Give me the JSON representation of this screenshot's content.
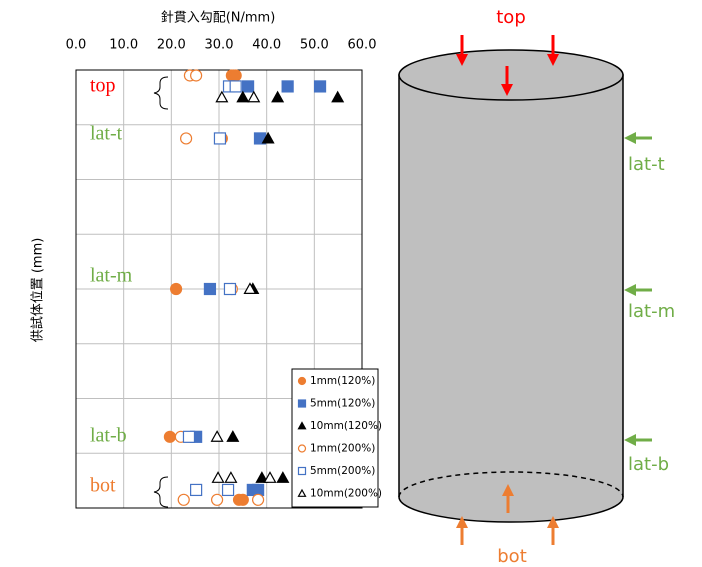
{
  "chart_data": {
    "type": "scatter",
    "title": "針貫入勾配(N/mm)",
    "y_label": "供試体位置 (mm)",
    "xlim": [
      0,
      60
    ],
    "xticks": [
      {
        "value": 0,
        "label": "0.0"
      },
      {
        "value": 10,
        "label": "10.0"
      },
      {
        "value": 20,
        "label": "20.0"
      },
      {
        "value": 30,
        "label": "30.0"
      },
      {
        "value": 40,
        "label": "40.0"
      },
      {
        "value": 50,
        "label": "50.0"
      },
      {
        "value": 60,
        "label": "60.0"
      }
    ],
    "ylim": [
      0,
      8
    ],
    "yticks": [
      0,
      1,
      2,
      3,
      4,
      5,
      6,
      7,
      8
    ],
    "ytick_labels": false,
    "grid": true,
    "series": [
      {
        "name": "1mm(120%)",
        "color": "#ed7d31",
        "marker": "circle",
        "filled": true,
        "x": [
          32.7,
          33.5,
          30.6,
          21.0,
          19.7,
          34.2,
          35.0
        ],
        "y": [
          7.9,
          7.9,
          6.75,
          4.0,
          1.3,
          0.15,
          0.15
        ]
      },
      {
        "name": "5mm(120%)",
        "color": "#4472c4",
        "marker": "square",
        "filled": true,
        "x": [
          36.1,
          44.4,
          51.2,
          38.6,
          28.1,
          25.2,
          37.1,
          38.2
        ],
        "y": [
          7.7,
          7.7,
          7.7,
          6.75,
          4.0,
          1.3,
          0.33,
          0.33
        ]
      },
      {
        "name": "10mm(120%)",
        "color": "#000000",
        "marker": "triangle",
        "filled": true,
        "x": [
          35.0,
          42.3,
          54.9,
          40.3,
          37.1,
          32.9,
          39.0,
          43.4
        ],
        "y": [
          7.5,
          7.5,
          7.5,
          6.75,
          4.0,
          1.3,
          0.55,
          0.55
        ]
      },
      {
        "name": "1mm(200%)",
        "color": "#ed7d31",
        "marker": "circle",
        "filled": false,
        "x": [
          23.9,
          25.2,
          23.1,
          32.7,
          22.0,
          22.6,
          29.6,
          38.2
        ],
        "y": [
          7.9,
          7.9,
          6.75,
          4.0,
          1.3,
          0.15,
          0.15,
          0.15
        ]
      },
      {
        "name": "5mm(200%)",
        "color": "#4472c4",
        "marker": "square",
        "filled": false,
        "x": [
          32.1,
          33.5,
          30.2,
          32.3,
          23.7,
          25.2,
          31.9
        ],
        "y": [
          7.7,
          7.7,
          6.75,
          4.0,
          1.3,
          0.33,
          0.33
        ]
      },
      {
        "name": "10mm(200%)",
        "color": "#000000",
        "marker": "triangle",
        "filled": false,
        "x": [
          30.6,
          37.3,
          36.5,
          29.6,
          29.8,
          32.5,
          40.7
        ],
        "y": [
          7.5,
          7.5,
          4.0,
          1.3,
          0.55,
          0.55,
          0.55
        ]
      }
    ],
    "annotations": [
      {
        "text": "top",
        "color": "#ff0000"
      },
      {
        "text": "lat-t",
        "color": "#70ad47"
      },
      {
        "text": "lat-m",
        "color": "#70ad47"
      },
      {
        "text": "lat-b",
        "color": "#70ad47"
      },
      {
        "text": "bot",
        "color": "#ed7d31"
      }
    ]
  },
  "diagram": {
    "labels": [
      {
        "text": "top",
        "color": "#ff0000"
      },
      {
        "text": "lat-t",
        "color": "#70ad47"
      },
      {
        "text": "lat-m",
        "color": "#70ad47"
      },
      {
        "text": "lat-b",
        "color": "#70ad47"
      },
      {
        "text": "bot",
        "color": "#ed7d31"
      }
    ]
  }
}
